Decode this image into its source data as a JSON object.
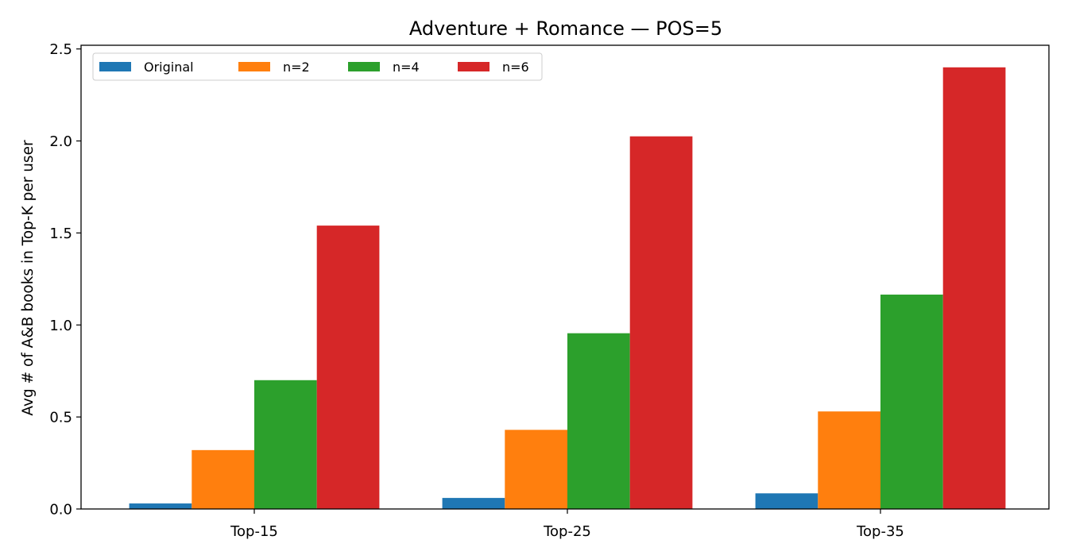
{
  "chart_data": {
    "type": "bar",
    "title": "Adventure + Romance — POS=5",
    "xlabel": "",
    "ylabel": "Avg # of A&B books in Top-K per user",
    "categories": [
      "Top-15",
      "Top-25",
      "Top-35"
    ],
    "series": [
      {
        "name": "Original",
        "color": "#1f77b4",
        "values": [
          0.03,
          0.06,
          0.085
        ]
      },
      {
        "name": "n=2",
        "color": "#ff7f0e",
        "values": [
          0.32,
          0.43,
          0.53
        ]
      },
      {
        "name": "n=4",
        "color": "#2ca02c",
        "values": [
          0.7,
          0.955,
          1.165
        ]
      },
      {
        "name": "n=6",
        "color": "#d62728",
        "values": [
          1.54,
          2.025,
          2.4
        ]
      }
    ],
    "ylim": [
      0,
      2.52
    ],
    "yticks": [
      0.0,
      0.5,
      1.0,
      1.5,
      2.0,
      2.5
    ],
    "ytick_labels": [
      "0.0",
      "0.5",
      "1.0",
      "1.5",
      "2.0",
      "2.5"
    ],
    "grid": false,
    "legend": {
      "placement": "top-left",
      "columns": 4
    }
  }
}
